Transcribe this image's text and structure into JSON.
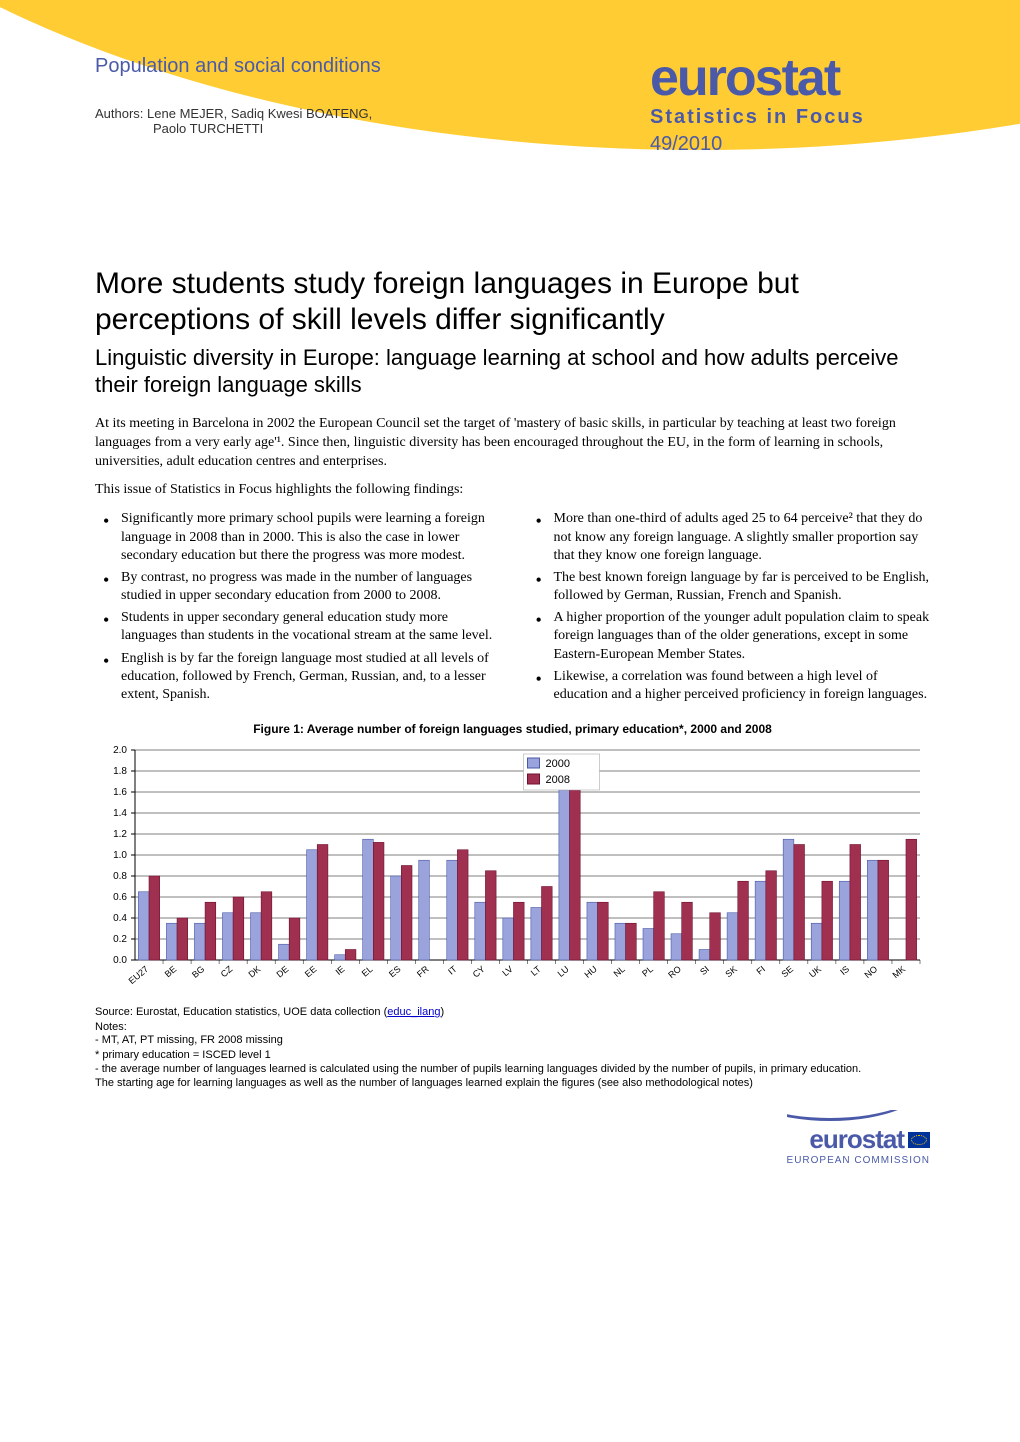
{
  "header": {
    "category": "Population and social conditions",
    "authors_label": "Authors:",
    "authors_line1": "Lene MEJER, Sadiq Kwesi BOATENG,",
    "authors_line2": "Paolo TURCHETTI",
    "brand": "eurostat",
    "series": "Statistics in Focus",
    "issue": "49/2010"
  },
  "title": "More students study foreign languages in Europe but perceptions of skill levels differ significantly",
  "subtitle": "Linguistic diversity in Europe: language learning at school and how adults perceive their foreign language skills",
  "intro1": "At its meeting in Barcelona in 2002 the European Council set the target of 'mastery of basic skills, in particular by teaching at least two foreign languages from a very early age'¹. Since then, linguistic diversity has been encouraged throughout the EU, in the form of learning in schools, universities, adult education centres and enterprises.",
  "intro2": "This issue of Statistics in Focus highlights the following findings:",
  "bullets_left": [
    "Significantly more primary school pupils were learning a foreign language in 2008 than in 2000. This is also the case in lower secondary education but there the progress was more modest.",
    "By contrast, no progress was made in the number of languages studied in upper secondary education from 2000 to 2008.",
    "Students in upper secondary general education study more languages than students in the vocational stream at the same level.",
    "English is by far the foreign language most studied at all levels of education, followed by French, German, Russian, and, to a lesser extent, Spanish."
  ],
  "bullets_right": [
    "More than one-third of adults aged 25 to 64 perceive² that they do not know any foreign language. A slightly smaller proportion say that they know one foreign language.",
    "The best known foreign language by far is perceived to be English, followed by German, Russian, French and Spanish.",
    "A higher proportion of the younger adult population claim to speak foreign languages than of the older generations, except in some Eastern-European Member States.",
    "Likewise, a correlation was found between a high level of education and a higher perceived proficiency in foreign languages."
  ],
  "chart": {
    "title": "Figure 1: Average number of foreign languages studied, primary education*, 2000 and 2008",
    "type": "bar",
    "legend": [
      "2000",
      "2008"
    ],
    "colors": {
      "2000": "#9aa3db",
      "2008": "#a03050",
      "border": "#000000",
      "grid": "#000000",
      "bg": "#ffffff"
    },
    "ylim": [
      0.0,
      2.0
    ],
    "ytick_step": 0.2,
    "yticks": [
      "0.0",
      "0.2",
      "0.4",
      "0.6",
      "0.8",
      "1.0",
      "1.2",
      "1.4",
      "1.6",
      "1.8",
      "2.0"
    ],
    "categories": [
      "EU27",
      "BE",
      "BG",
      "CZ",
      "DK",
      "DE",
      "EE",
      "IE",
      "EL",
      "ES",
      "FR",
      "IT",
      "CY",
      "LV",
      "LT",
      "LU",
      "HU",
      "NL",
      "PL",
      "RO",
      "SI",
      "SK",
      "FI",
      "SE",
      "UK",
      "IS",
      "NO",
      "MK"
    ],
    "values_2000": [
      0.65,
      0.35,
      0.35,
      0.45,
      0.45,
      0.15,
      1.05,
      0.05,
      1.15,
      0.8,
      0.95,
      0.95,
      0.55,
      0.4,
      0.5,
      1.8,
      0.55,
      0.35,
      0.3,
      0.25,
      0.1,
      0.45,
      0.75,
      1.15,
      0.35,
      0.75,
      0.95,
      0.0
    ],
    "values_2008": [
      0.8,
      0.4,
      0.55,
      0.6,
      0.65,
      0.4,
      1.1,
      0.1,
      1.12,
      0.9,
      0.0,
      1.05,
      0.85,
      0.55,
      0.7,
      1.85,
      0.55,
      0.35,
      0.65,
      0.55,
      0.45,
      0.75,
      0.85,
      1.1,
      0.75,
      1.1,
      0.95,
      1.15
    ],
    "bar_width": 0.38,
    "tick_fontsize": 9,
    "axis_fontsize": 10
  },
  "source": {
    "prefix": "Source: Eurostat, Education statistics, UOE data collection (",
    "link": "educ_ilang",
    "suffix": ")"
  },
  "notes_label": "Notes:",
  "notes": [
    "- MT, AT, PT missing, FR 2008 missing",
    "* primary education = ISCED level 1",
    "- the average number of languages learned is calculated using the number of pupils learning languages divided by the number of pupils, in primary education.",
    "The starting age for learning languages as well as the number of languages learned explain the figures (see also methodological notes)"
  ],
  "footer": {
    "brand": "eurostat",
    "org": "EUROPEAN COMMISSION"
  }
}
